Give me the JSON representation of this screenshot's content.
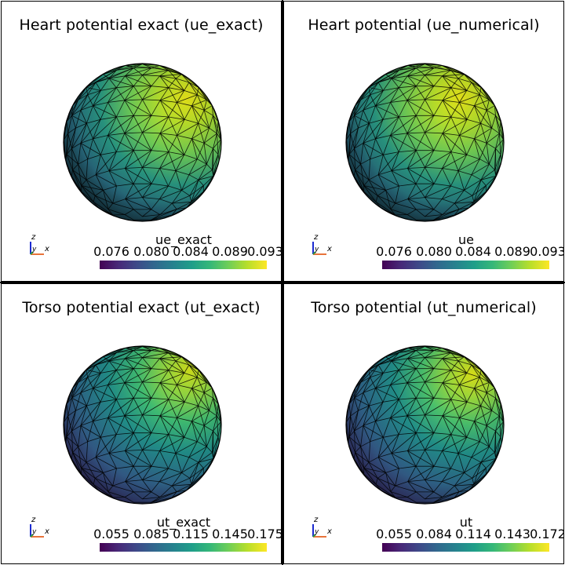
{
  "panels": [
    {
      "title": "Heart potential exact (ue_exact)",
      "colorbar": {
        "label": "ue_exact",
        "ticks": [
          "0.076",
          "0.080",
          "0.084",
          "0.089",
          "0.093"
        ]
      },
      "axes": {
        "z": "z",
        "y": "y",
        "x": "x"
      }
    },
    {
      "title": "Heart potential (ue_numerical)",
      "colorbar": {
        "label": "ue",
        "ticks": [
          "0.076",
          "0.080",
          "0.084",
          "0.089",
          "0.093"
        ]
      },
      "axes": {
        "z": "z",
        "y": "y",
        "x": "x"
      }
    },
    {
      "title": "Torso potential exact (ut_exact)",
      "colorbar": {
        "label": "ut_exact",
        "ticks": [
          "0.055",
          "0.085",
          "0.115",
          "0.145",
          "0.175"
        ]
      },
      "axes": {
        "z": "z",
        "y": "y",
        "x": "x"
      }
    },
    {
      "title": "Torso potential (ut_numerical)",
      "colorbar": {
        "label": "ut",
        "ticks": [
          "0.055",
          "0.084",
          "0.114",
          "0.143",
          "0.172"
        ]
      },
      "axes": {
        "z": "z",
        "y": "y",
        "x": "x"
      }
    }
  ],
  "colors": {
    "colormap": "viridis",
    "mesh_edges": "#000000",
    "axis_x": "#e8743b",
    "axis_y": "#2f9e44",
    "axis_z": "#1c2bd1"
  }
}
